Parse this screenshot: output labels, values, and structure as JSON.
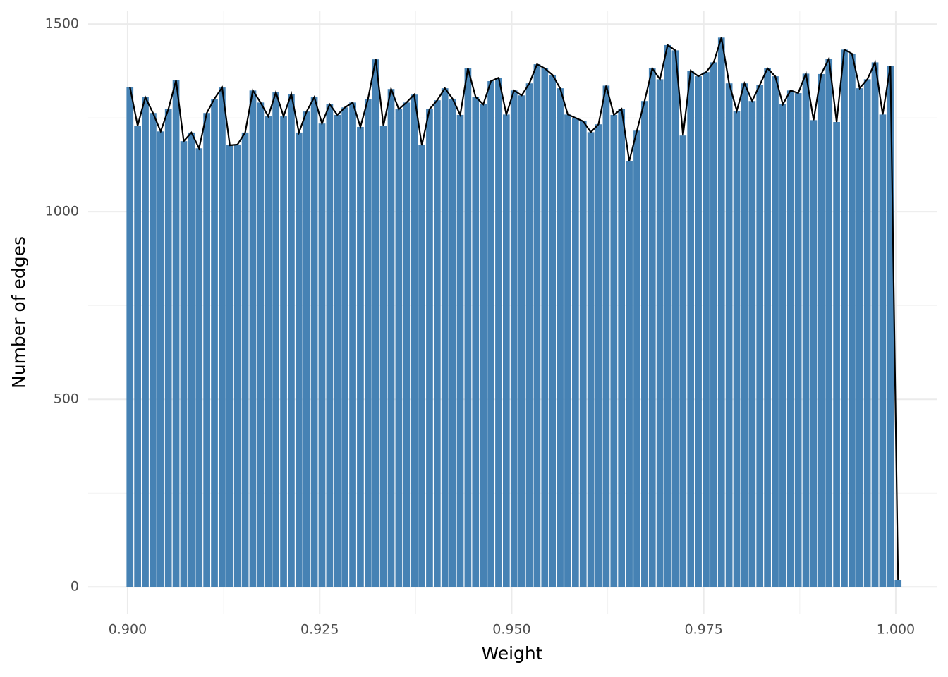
{
  "chart_data": {
    "type": "bar",
    "x_label": "Weight",
    "y_label": "Number of edges",
    "x": [
      0.9,
      0.901,
      0.902,
      0.903,
      0.904,
      0.905,
      0.906,
      0.907,
      0.908,
      0.909,
      0.91,
      0.911,
      0.912,
      0.913,
      0.914,
      0.915,
      0.916,
      0.917,
      0.918,
      0.919,
      0.92,
      0.921,
      0.922,
      0.923,
      0.924,
      0.925,
      0.926,
      0.927,
      0.928,
      0.929,
      0.93,
      0.931,
      0.932,
      0.933,
      0.934,
      0.935,
      0.936,
      0.937,
      0.938,
      0.939,
      0.94,
      0.941,
      0.942,
      0.943,
      0.944,
      0.945,
      0.946,
      0.947,
      0.948,
      0.949,
      0.95,
      0.951,
      0.952,
      0.953,
      0.954,
      0.955,
      0.956,
      0.957,
      0.958,
      0.959,
      0.96,
      0.961,
      0.962,
      0.963,
      0.964,
      0.965,
      0.966,
      0.967,
      0.968,
      0.969,
      0.97,
      0.971,
      0.972,
      0.973,
      0.974,
      0.975,
      0.976,
      0.977,
      0.978,
      0.979,
      0.98,
      0.981,
      0.982,
      0.983,
      0.984,
      0.985,
      0.986,
      0.987,
      0.988,
      0.989,
      0.99,
      0.991,
      0.992,
      0.993,
      0.994,
      0.995,
      0.996,
      0.997,
      0.998,
      0.999,
      1.0
    ],
    "values": [
      1332,
      1229,
      1305,
      1263,
      1214,
      1273,
      1350,
      1188,
      1211,
      1169,
      1263,
      1301,
      1331,
      1177,
      1179,
      1211,
      1323,
      1291,
      1254,
      1318,
      1254,
      1314,
      1211,
      1267,
      1305,
      1235,
      1286,
      1258,
      1278,
      1291,
      1226,
      1301,
      1406,
      1229,
      1327,
      1273,
      1291,
      1312,
      1177,
      1273,
      1297,
      1329,
      1301,
      1258,
      1382,
      1306,
      1286,
      1348,
      1357,
      1259,
      1323,
      1310,
      1342,
      1393,
      1382,
      1365,
      1329,
      1259,
      1250,
      1241,
      1212,
      1233,
      1336,
      1258,
      1274,
      1135,
      1216,
      1295,
      1382,
      1353,
      1444,
      1430,
      1203,
      1376,
      1361,
      1372,
      1398,
      1464,
      1342,
      1269,
      1342,
      1295,
      1338,
      1382,
      1361,
      1286,
      1323,
      1316,
      1368,
      1244,
      1367,
      1408,
      1239,
      1432,
      1421,
      1329,
      1353,
      1398,
      1259,
      1389,
      19
    ],
    "color": "#4682b4",
    "line_color": "#000000",
    "xlim": [
      0.89486,
      1.00533
    ],
    "ylim": [
      -71,
      1536
    ],
    "xticks": [
      {
        "value": 0.9,
        "label": "0.900"
      },
      {
        "value": 0.925,
        "label": "0.925"
      },
      {
        "value": 0.95,
        "label": "0.950"
      },
      {
        "value": 0.975,
        "label": "0.975"
      },
      {
        "value": 1.0,
        "label": "1.000"
      }
    ],
    "yticks": [
      0,
      500,
      1000,
      1500
    ],
    "grid": true
  }
}
